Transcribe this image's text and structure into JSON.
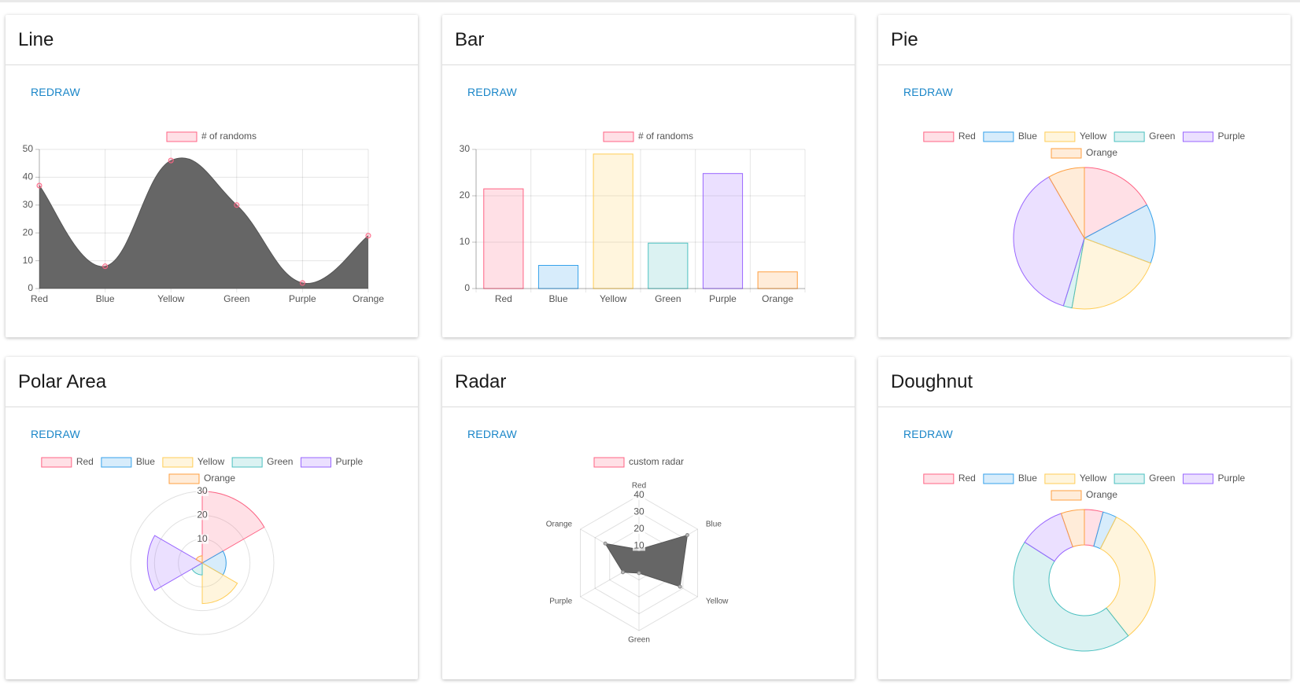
{
  "colors": {
    "Red": "#ff6384",
    "Blue": "#36a2eb",
    "Yellow": "#ffcd56",
    "Green": "#4bc0c0",
    "Purple": "#9966ff",
    "Orange": "#ff9f40",
    "link": "#1a86c8",
    "grey_fill": "#666666"
  },
  "cards": [
    {
      "title": "Line",
      "button": "REDRAW"
    },
    {
      "title": "Bar",
      "button": "REDRAW"
    },
    {
      "title": "Pie",
      "button": "REDRAW"
    },
    {
      "title": "Polar Area",
      "button": "REDRAW"
    },
    {
      "title": "Radar",
      "button": "REDRAW"
    },
    {
      "title": "Doughnut",
      "button": "REDRAW"
    }
  ],
  "chart_data": [
    {
      "type": "line",
      "categories": [
        "Red",
        "Blue",
        "Yellow",
        "Green",
        "Purple",
        "Orange"
      ],
      "series": [
        {
          "name": "# of randoms",
          "values": [
            37,
            8,
            46,
            30,
            2,
            19
          ]
        }
      ],
      "fill": true,
      "ylim": [
        0,
        50
      ],
      "yticks": [
        0,
        10,
        20,
        30,
        40,
        50
      ],
      "grid": true,
      "legend": "top"
    },
    {
      "type": "bar",
      "categories": [
        "Red",
        "Blue",
        "Yellow",
        "Green",
        "Purple",
        "Orange"
      ],
      "series": [
        {
          "name": "# of randoms",
          "values": [
            21.5,
            5,
            29,
            9.8,
            24.8,
            3.6
          ]
        }
      ],
      "ylim": [
        0,
        30
      ],
      "yticks": [
        0,
        10,
        20,
        30
      ],
      "grid": true,
      "legend": "top"
    },
    {
      "type": "pie",
      "categories": [
        "Red",
        "Blue",
        "Yellow",
        "Green",
        "Purple",
        "Orange"
      ],
      "values": [
        14,
        11,
        18,
        1.6,
        30,
        6.8
      ],
      "legend": "top"
    },
    {
      "type": "polarArea",
      "categories": [
        "Red",
        "Blue",
        "Yellow",
        "Green",
        "Purple",
        "Orange"
      ],
      "values": [
        30,
        10,
        17,
        5,
        23,
        3
      ],
      "rlim": [
        0,
        30
      ],
      "rticks": [
        10,
        20,
        30
      ],
      "legend": "top"
    },
    {
      "type": "radar",
      "categories": [
        "Red",
        "Blue",
        "Yellow",
        "Green",
        "Purple",
        "Orange"
      ],
      "series": [
        {
          "name": "custom radar",
          "values": [
            8,
            33,
            28,
            6,
            11,
            23
          ]
        }
      ],
      "rlim": [
        0,
        40
      ],
      "rticks": [
        10,
        20,
        30,
        40
      ],
      "legend": "top"
    },
    {
      "type": "doughnut",
      "categories": [
        "Red",
        "Blue",
        "Yellow",
        "Green",
        "Purple",
        "Orange"
      ],
      "values": [
        4,
        3,
        30,
        42,
        10,
        5
      ],
      "legend": "top"
    }
  ]
}
